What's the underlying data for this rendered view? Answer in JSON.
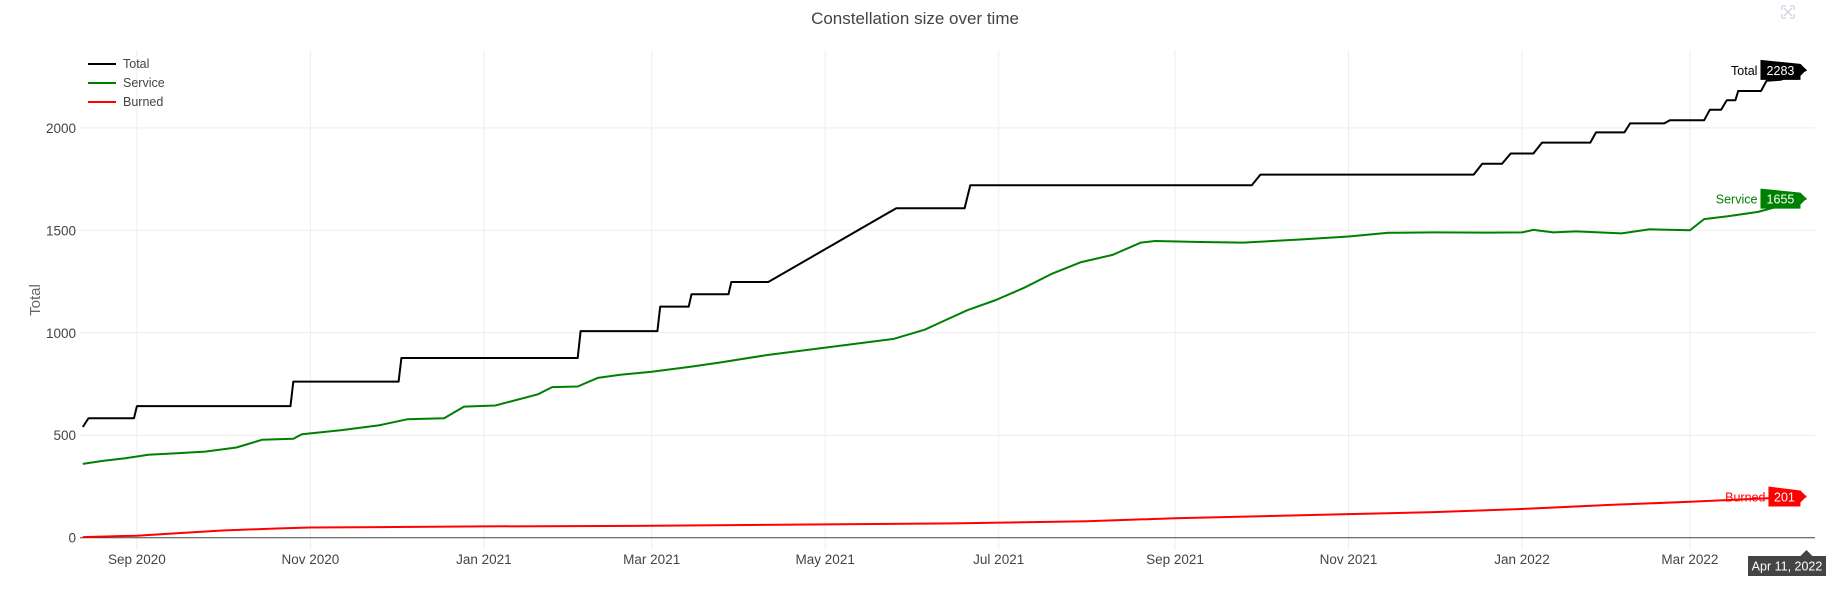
{
  "chart_data": {
    "type": "line",
    "title": "Constellation size over time",
    "ylabel": "Total",
    "xlabel": "",
    "x_range": [
      "2020-08-12",
      "2022-04-14"
    ],
    "ylim": [
      -60,
      2380
    ],
    "y_ticks": [
      0,
      500,
      1000,
      1500,
      2000
    ],
    "x_ticks": [
      {
        "date": "2020-09-01",
        "label": "Sep 2020"
      },
      {
        "date": "2020-11-01",
        "label": "Nov 2020"
      },
      {
        "date": "2021-01-01",
        "label": "Jan 2021"
      },
      {
        "date": "2021-03-01",
        "label": "Mar 2021"
      },
      {
        "date": "2021-05-01",
        "label": "May 2021"
      },
      {
        "date": "2021-07-01",
        "label": "Jul 2021"
      },
      {
        "date": "2021-09-01",
        "label": "Sep 2021"
      },
      {
        "date": "2021-11-01",
        "label": "Nov 2021"
      },
      {
        "date": "2022-01-01",
        "label": "Jan 2022"
      },
      {
        "date": "2022-03-01",
        "label": "Mar 2022"
      }
    ],
    "grid": true,
    "legend_position": "top-left",
    "series": [
      {
        "name": "Total",
        "color": "#000000",
        "line_shape": "step",
        "points": [
          [
            "2020-08-13",
            540
          ],
          [
            "2020-08-15",
            583
          ],
          [
            "2020-08-31",
            583
          ],
          [
            "2020-09-01",
            642
          ],
          [
            "2020-10-25",
            642
          ],
          [
            "2020-10-26",
            762
          ],
          [
            "2020-12-02",
            762
          ],
          [
            "2020-12-03",
            877
          ],
          [
            "2021-02-03",
            877
          ],
          [
            "2021-02-04",
            1008
          ],
          [
            "2021-03-03",
            1008
          ],
          [
            "2021-03-04",
            1128
          ],
          [
            "2021-03-14",
            1128
          ],
          [
            "2021-03-15",
            1188
          ],
          [
            "2021-03-28",
            1188
          ],
          [
            "2021-03-29",
            1248
          ],
          [
            "2021-04-11",
            1248
          ],
          [
            "2021-05-26",
            1608
          ],
          [
            "2021-06-19",
            1608
          ],
          [
            "2021-06-21",
            1720
          ],
          [
            "2021-09-28",
            1720
          ],
          [
            "2021-10-01",
            1772
          ],
          [
            "2021-12-15",
            1772
          ],
          [
            "2021-12-18",
            1825
          ],
          [
            "2021-12-25",
            1825
          ],
          [
            "2021-12-28",
            1875
          ],
          [
            "2022-01-05",
            1875
          ],
          [
            "2022-01-08",
            1928
          ],
          [
            "2022-01-25",
            1928
          ],
          [
            "2022-01-27",
            1978
          ],
          [
            "2022-02-06",
            1978
          ],
          [
            "2022-02-08",
            2022
          ],
          [
            "2022-02-20",
            2022
          ],
          [
            "2022-02-22",
            2037
          ],
          [
            "2022-03-06",
            2037
          ],
          [
            "2022-03-08",
            2088
          ],
          [
            "2022-03-12",
            2088
          ],
          [
            "2022-03-14",
            2135
          ],
          [
            "2022-03-17",
            2135
          ],
          [
            "2022-03-18",
            2180
          ],
          [
            "2022-03-26",
            2180
          ],
          [
            "2022-03-28",
            2230
          ],
          [
            "2022-04-02",
            2235
          ],
          [
            "2022-04-11",
            2283
          ]
        ]
      },
      {
        "name": "Service",
        "color": "#008000",
        "line_shape": "linear",
        "points": [
          [
            "2020-08-13",
            360
          ],
          [
            "2020-08-20",
            375
          ],
          [
            "2020-08-28",
            388
          ],
          [
            "2020-09-05",
            405
          ],
          [
            "2020-09-15",
            412
          ],
          [
            "2020-09-25",
            420
          ],
          [
            "2020-10-06",
            440
          ],
          [
            "2020-10-15",
            478
          ],
          [
            "2020-10-26",
            483
          ],
          [
            "2020-10-29",
            505
          ],
          [
            "2020-11-12",
            525
          ],
          [
            "2020-11-25",
            548
          ],
          [
            "2020-12-05",
            578
          ],
          [
            "2020-12-18",
            583
          ],
          [
            "2020-12-25",
            640
          ],
          [
            "2021-01-05",
            645
          ],
          [
            "2021-01-20",
            700
          ],
          [
            "2021-01-25",
            735
          ],
          [
            "2021-02-03",
            738
          ],
          [
            "2021-02-10",
            780
          ],
          [
            "2021-02-18",
            795
          ],
          [
            "2021-03-01",
            810
          ],
          [
            "2021-03-15",
            835
          ],
          [
            "2021-03-25",
            855
          ],
          [
            "2021-04-10",
            890
          ],
          [
            "2021-05-25",
            970
          ],
          [
            "2021-06-05",
            1015
          ],
          [
            "2021-06-12",
            1060
          ],
          [
            "2021-06-20",
            1110
          ],
          [
            "2021-06-30",
            1160
          ],
          [
            "2021-07-10",
            1220
          ],
          [
            "2021-07-20",
            1290
          ],
          [
            "2021-07-30",
            1345
          ],
          [
            "2021-08-10",
            1380
          ],
          [
            "2021-08-20",
            1440
          ],
          [
            "2021-08-25",
            1448
          ],
          [
            "2021-09-10",
            1443
          ],
          [
            "2021-09-25",
            1440
          ],
          [
            "2021-10-15",
            1455
          ],
          [
            "2021-11-01",
            1470
          ],
          [
            "2021-11-15",
            1488
          ],
          [
            "2021-12-01",
            1490
          ],
          [
            "2021-12-20",
            1489
          ],
          [
            "2022-01-01",
            1490
          ],
          [
            "2022-01-05",
            1502
          ],
          [
            "2022-01-12",
            1490
          ],
          [
            "2022-01-20",
            1495
          ],
          [
            "2022-02-05",
            1485
          ],
          [
            "2022-02-15",
            1505
          ],
          [
            "2022-03-01",
            1500
          ],
          [
            "2022-03-06",
            1555
          ],
          [
            "2022-03-15",
            1570
          ],
          [
            "2022-03-25",
            1590
          ],
          [
            "2022-04-11",
            1655
          ]
        ]
      },
      {
        "name": "Burned",
        "color": "#ff0000",
        "line_shape": "linear",
        "points": [
          [
            "2020-08-13",
            3
          ],
          [
            "2020-09-01",
            10
          ],
          [
            "2020-09-15",
            22
          ],
          [
            "2020-10-01",
            35
          ],
          [
            "2020-10-20",
            45
          ],
          [
            "2020-11-01",
            50
          ],
          [
            "2020-12-01",
            52
          ],
          [
            "2021-01-01",
            55
          ],
          [
            "2021-03-01",
            58
          ],
          [
            "2021-05-01",
            65
          ],
          [
            "2021-06-15",
            70
          ],
          [
            "2021-08-01",
            80
          ],
          [
            "2021-09-01",
            95
          ],
          [
            "2021-10-01",
            105
          ],
          [
            "2021-11-01",
            115
          ],
          [
            "2021-12-01",
            125
          ],
          [
            "2022-01-01",
            140
          ],
          [
            "2022-02-01",
            160
          ],
          [
            "2022-03-01",
            175
          ],
          [
            "2022-04-11",
            201
          ]
        ]
      }
    ],
    "hover": {
      "date_label": "Apr 11, 2022",
      "labels": [
        {
          "series": "Total",
          "value": "2283"
        },
        {
          "series": "Service",
          "value": "1655"
        },
        {
          "series": "Burned",
          "value": "201"
        }
      ]
    }
  }
}
